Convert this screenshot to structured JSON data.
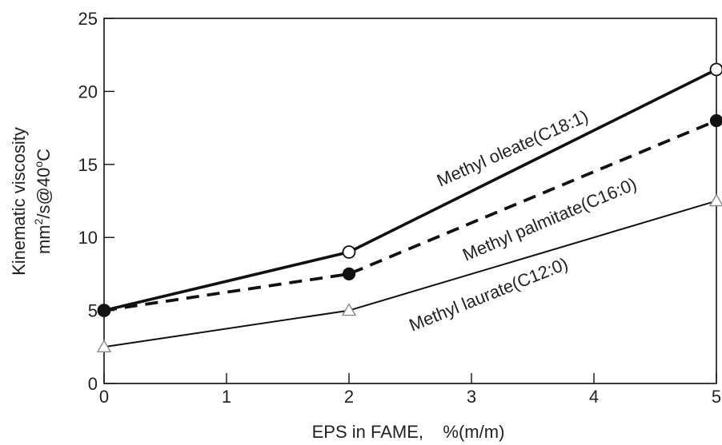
{
  "chart_data": {
    "type": "line",
    "title": "",
    "xlabel": "EPS in FAME,    %(m/m)",
    "ylabel_line1": "Kinematic viscosity",
    "ylabel_line2_parts": [
      "mm",
      "2",
      "/s@40",
      "o",
      "C"
    ],
    "xlim": [
      0,
      5
    ],
    "ylim": [
      0,
      25
    ],
    "xticks": [
      0,
      1,
      2,
      3,
      4,
      5
    ],
    "yticks": [
      0,
      5,
      10,
      15,
      20,
      25
    ],
    "grid": false,
    "series": [
      {
        "name": "Methyl oleate(C18:1)",
        "x": [
          0,
          2,
          5
        ],
        "values": [
          5,
          9,
          21.5
        ],
        "line_style": "solid-thick",
        "marker": "open-circle",
        "color": "#111111"
      },
      {
        "name": "Methyl palmitate(C16:0)",
        "x": [
          0,
          2,
          5
        ],
        "values": [
          5,
          7.5,
          18
        ],
        "line_style": "dashed-thick",
        "marker": "filled-circle",
        "color": "#111111"
      },
      {
        "name": "Methyl laurate(C12:0)",
        "x": [
          0,
          2,
          5
        ],
        "values": [
          2.5,
          5,
          12.5
        ],
        "line_style": "solid-thin",
        "marker": "open-triangle",
        "color": "#111111"
      }
    ]
  }
}
